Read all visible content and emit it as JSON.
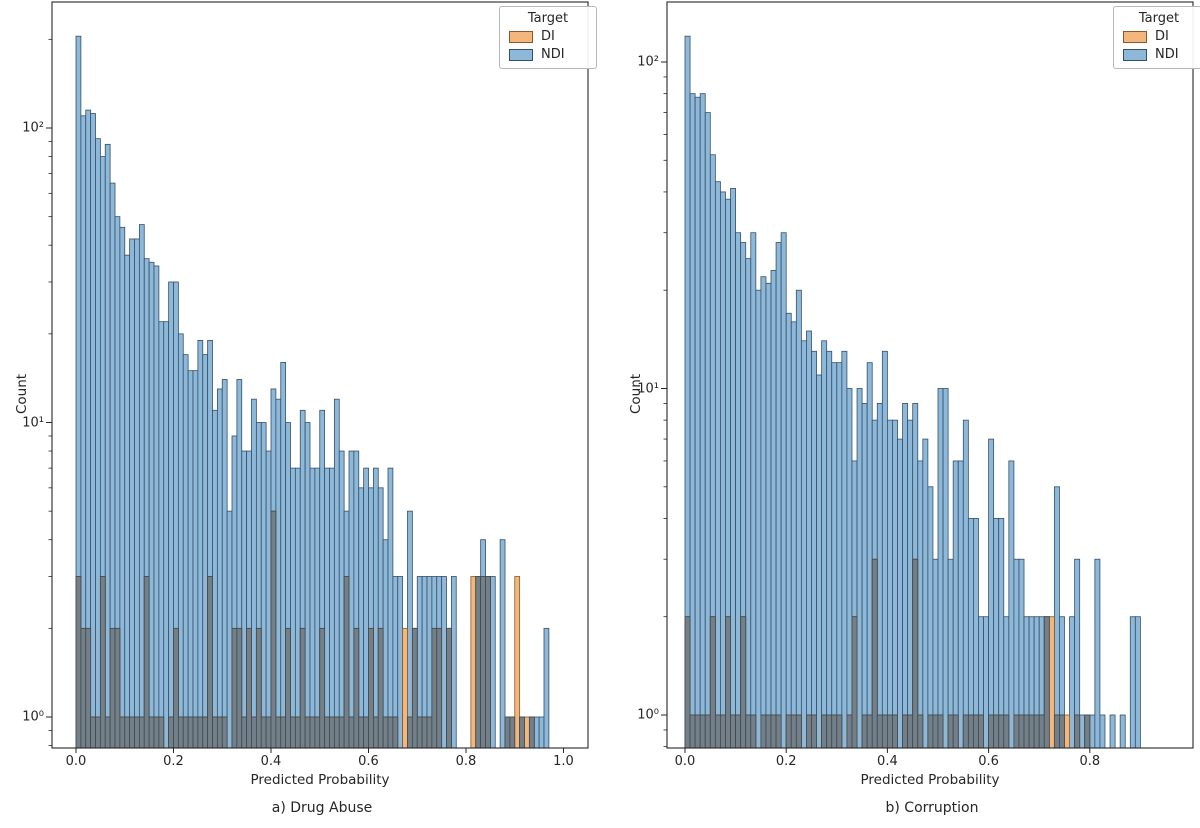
{
  "figure": {
    "background": "#ffffff",
    "ylabel": "Count",
    "xlabel": "Predicted Probability"
  },
  "legend": {
    "title": "Target",
    "entries": [
      {
        "label": "DI",
        "fill": "#f3b77e",
        "edge": "#8a5a28"
      },
      {
        "label": "NDI",
        "fill": "#8db8d8",
        "edge": "#35506b"
      }
    ]
  },
  "chart_data": [
    {
      "type": "bar",
      "subtype": "overlapping-histogram",
      "caption": "a) Drug Abuse",
      "xlabel": "Predicted Probability",
      "ylabel": "Count",
      "yscale": "log",
      "ylim": [
        0.78,
        260
      ],
      "xlim": [
        -0.049,
        1.009
      ],
      "bin_width": 0.01,
      "bin_start": 0.0,
      "x_ticks": [
        0.0,
        0.2,
        0.4,
        0.6,
        0.8,
        1.0
      ],
      "y_ticks": [
        {
          "value": 1,
          "label": "10⁰"
        },
        {
          "value": 10,
          "label": "10¹"
        },
        {
          "value": 100,
          "label": "10²"
        }
      ],
      "overlap_color": "#73808a",
      "overlap_edge": "#40484c",
      "series": [
        {
          "name": "NDI",
          "fill": "#8db8d8",
          "edge": "#35506b",
          "counts": [
            205,
            110,
            115,
            112,
            92,
            80,
            88,
            65,
            50,
            46,
            37,
            42,
            42,
            47,
            36,
            35,
            34,
            22,
            22,
            30,
            30,
            20,
            17,
            15,
            15,
            19,
            17,
            19,
            11,
            13,
            14,
            5,
            9,
            14,
            8,
            8,
            12,
            10,
            10,
            8,
            13,
            12,
            16,
            10,
            7,
            7,
            11,
            10,
            7,
            7,
            11,
            7,
            7,
            12,
            8,
            5,
            8,
            8,
            6,
            7,
            6,
            7,
            6,
            4,
            7,
            3,
            3,
            0,
            5,
            2,
            3,
            3,
            3,
            3,
            3,
            3,
            2,
            3,
            0,
            0,
            0,
            0,
            3,
            4,
            3,
            3,
            0,
            4,
            1,
            1,
            0,
            1,
            0,
            1,
            1,
            1,
            2
          ]
        },
        {
          "name": "DI",
          "fill": "#f3b77e",
          "edge": "#8a5a28",
          "counts": [
            3,
            2,
            2,
            1,
            1,
            3,
            1,
            2,
            2,
            1,
            1,
            1,
            1,
            1,
            3,
            1,
            1,
            1,
            0,
            1,
            2,
            1,
            1,
            1,
            1,
            1,
            1,
            3,
            1,
            1,
            1,
            0,
            2,
            2,
            1,
            2,
            1,
            2,
            1,
            1,
            5,
            1,
            1,
            2,
            1,
            1,
            2,
            1,
            1,
            1,
            2,
            1,
            1,
            1,
            1,
            3,
            1,
            2,
            1,
            1,
            2,
            1,
            2,
            1,
            1,
            1,
            0,
            2,
            1,
            2,
            1,
            1,
            1,
            2,
            2,
            0,
            2,
            0,
            0,
            0,
            0,
            3,
            3,
            3,
            3,
            0,
            0,
            0,
            1,
            1,
            3,
            1,
            1,
            1,
            0,
            0,
            0
          ]
        }
      ]
    },
    {
      "type": "bar",
      "subtype": "overlapping-histogram",
      "caption": "b) Corruption",
      "xlabel": "Predicted Probability",
      "ylabel": "Count",
      "yscale": "log",
      "ylim": [
        0.79,
        148
      ],
      "xlim": [
        -0.036,
        1.004
      ],
      "bin_width": 0.01,
      "bin_start": 0.0,
      "x_ticks": [
        0.0,
        0.2,
        0.4,
        0.6,
        0.8
      ],
      "y_ticks": [
        {
          "value": 1,
          "label": "10⁰"
        },
        {
          "value": 10,
          "label": "10¹"
        },
        {
          "value": 100,
          "label": "10²"
        }
      ],
      "overlap_color": "#73808a",
      "overlap_edge": "#40484c",
      "series": [
        {
          "name": "NDI",
          "fill": "#8db8d8",
          "edge": "#35506b",
          "counts": [
            120,
            80,
            78,
            80,
            70,
            52,
            43,
            40,
            38,
            41,
            30,
            28,
            25,
            30,
            20,
            22,
            21,
            23,
            28,
            30,
            17,
            16,
            20,
            14,
            15,
            13,
            11,
            14,
            13,
            12,
            12,
            13,
            10,
            6,
            10,
            9,
            12,
            8,
            9,
            13,
            8,
            8,
            7,
            9,
            8,
            9,
            6,
            7,
            5,
            3,
            10,
            10,
            3,
            6,
            6,
            8,
            4,
            4,
            2,
            2,
            7,
            4,
            4,
            2,
            6,
            3,
            3,
            2,
            2,
            2,
            2,
            2,
            0,
            5,
            2,
            0,
            2,
            3,
            1,
            1,
            1,
            3,
            1,
            0,
            1,
            0,
            1,
            0,
            2,
            2
          ]
        },
        {
          "name": "DI",
          "fill": "#f3b77e",
          "edge": "#8a5a28",
          "counts": [
            2,
            1,
            1,
            1,
            1,
            2,
            1,
            1,
            2,
            1,
            1,
            2,
            1,
            1,
            0,
            1,
            1,
            1,
            1,
            0,
            1,
            1,
            1,
            0,
            1,
            1,
            0,
            1,
            1,
            1,
            1,
            0,
            1,
            2,
            0,
            1,
            1,
            3,
            1,
            1,
            1,
            1,
            0,
            1,
            1,
            3,
            1,
            0,
            1,
            1,
            1,
            0,
            1,
            1,
            0,
            1,
            1,
            1,
            1,
            0,
            1,
            1,
            1,
            1,
            0,
            1,
            1,
            1,
            1,
            1,
            1,
            2,
            2,
            1,
            1,
            1,
            0,
            1,
            0,
            1,
            0,
            0,
            0,
            0,
            0,
            0,
            0,
            0,
            0,
            0
          ]
        }
      ]
    }
  ]
}
